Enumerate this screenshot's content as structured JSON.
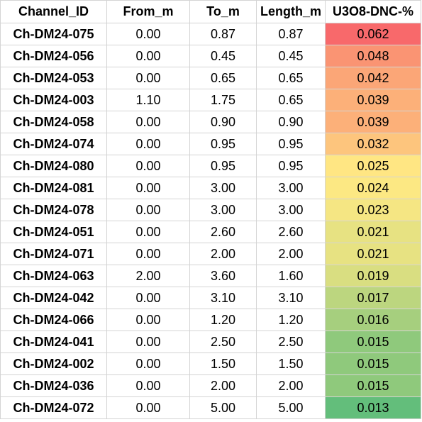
{
  "headers": [
    "Channel_ID",
    "From_m",
    "To_m",
    "Length_m",
    "U3O8-DNC-%"
  ],
  "rows": [
    {
      "id": "Ch-DM24-075",
      "from": "0.00",
      "to": "0.87",
      "length": "0.87",
      "u3o8": "0.062",
      "color": "#f8696b"
    },
    {
      "id": "Ch-DM24-056",
      "from": "0.00",
      "to": "0.45",
      "length": "0.45",
      "u3o8": "0.048",
      "color": "#fa9473"
    },
    {
      "id": "Ch-DM24-053",
      "from": "0.00",
      "to": "0.65",
      "length": "0.65",
      "u3o8": "0.042",
      "color": "#fba677"
    },
    {
      "id": "Ch-DM24-003",
      "from": "1.10",
      "to": "1.75",
      "length": "0.65",
      "u3o8": "0.039",
      "color": "#fcb079"
    },
    {
      "id": "Ch-DM24-058",
      "from": "0.00",
      "to": "0.90",
      "length": "0.90",
      "u3o8": "0.039",
      "color": "#fcb079"
    },
    {
      "id": "Ch-DM24-074",
      "from": "0.00",
      "to": "0.95",
      "length": "0.95",
      "u3o8": "0.032",
      "color": "#fdc57d"
    },
    {
      "id": "Ch-DM24-080",
      "from": "0.00",
      "to": "0.95",
      "length": "0.95",
      "u3o8": "0.025",
      "color": "#ffe683"
    },
    {
      "id": "Ch-DM24-081",
      "from": "0.00",
      "to": "3.00",
      "length": "3.00",
      "u3o8": "0.024",
      "color": "#fce883"
    },
    {
      "id": "Ch-DM24-078",
      "from": "0.00",
      "to": "3.00",
      "length": "3.00",
      "u3o8": "0.023",
      "color": "#f5e683"
    },
    {
      "id": "Ch-DM24-051",
      "from": "0.00",
      "to": "2.60",
      "length": "2.60",
      "u3o8": "0.021",
      "color": "#e7e282"
    },
    {
      "id": "Ch-DM24-071",
      "from": "0.00",
      "to": "2.00",
      "length": "2.00",
      "u3o8": "0.021",
      "color": "#e7e282"
    },
    {
      "id": "Ch-DM24-063",
      "from": "2.00",
      "to": "3.60",
      "length": "1.60",
      "u3o8": "0.019",
      "color": "#d9de81"
    },
    {
      "id": "Ch-DM24-042",
      "from": "0.00",
      "to": "3.10",
      "length": "3.10",
      "u3o8": "0.017",
      "color": "#bcd67f"
    },
    {
      "id": "Ch-DM24-066",
      "from": "0.00",
      "to": "1.20",
      "length": "1.20",
      "u3o8": "0.016",
      "color": "#a6cf7e"
    },
    {
      "id": "Ch-DM24-041",
      "from": "0.00",
      "to": "2.50",
      "length": "2.50",
      "u3o8": "0.015",
      "color": "#8fc97c"
    },
    {
      "id": "Ch-DM24-002",
      "from": "0.00",
      "to": "1.50",
      "length": "1.50",
      "u3o8": "0.015",
      "color": "#8fc97c"
    },
    {
      "id": "Ch-DM24-036",
      "from": "0.00",
      "to": "2.00",
      "length": "2.00",
      "u3o8": "0.015",
      "color": "#8fc97c"
    },
    {
      "id": "Ch-DM24-072",
      "from": "0.00",
      "to": "5.00",
      "length": "5.00",
      "u3o8": "0.013",
      "color": "#63be7b"
    }
  ]
}
